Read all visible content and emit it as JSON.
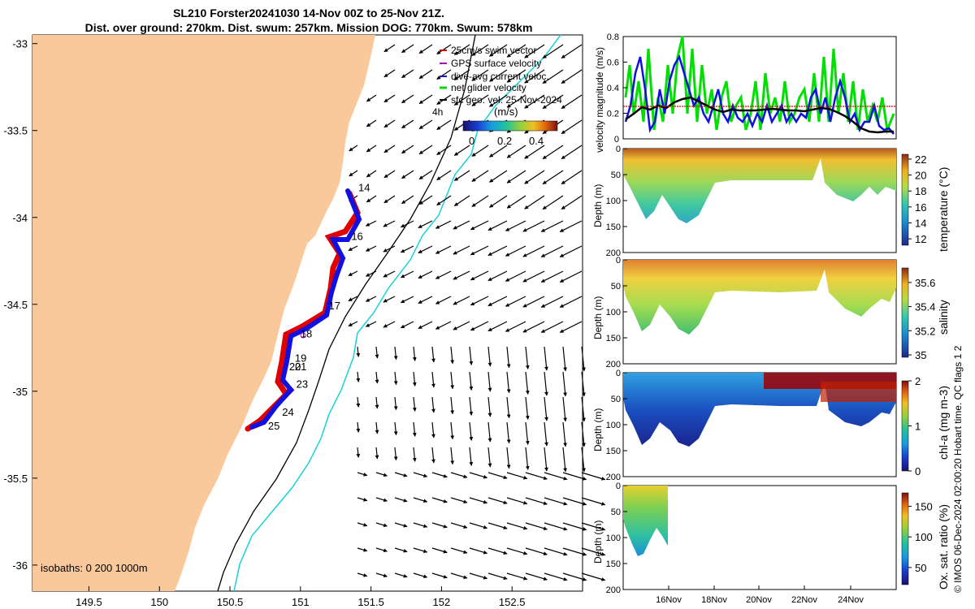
{
  "header": {
    "title_line1": "SL210 Forster20241030 14-Nov 00Z to 25-Nov 21Z.",
    "title_line2": "Dist. over ground: 270km. Dist. swum: 257km. Mission DOG: 770km. Swum: 578km"
  },
  "map": {
    "colors": {
      "land": "#f9c99b",
      "shelf_1000m": "#19d2d8",
      "shelf_200m": "#000000",
      "swim_vector": "#e00000",
      "dive_current": "#1010e0",
      "gps_velocity": "#c000c0",
      "net_velocity": "#00e000"
    },
    "x_ticks": [
      "149.5",
      "150",
      "150.5",
      "151",
      "151.5",
      "152",
      "152.5"
    ],
    "y_ticks": [
      "-33",
      "-33.5",
      "-34",
      "-34.5",
      "-35",
      "-35.5",
      "-36"
    ],
    "legend": [
      {
        "key": "swim",
        "label": "25cm/s swim vector"
      },
      {
        "key": "gps",
        "label": "GPS surface velocity"
      },
      {
        "key": "dive",
        "label": "dive-avg current veloc."
      },
      {
        "key": "net",
        "label": "net glider velocity"
      },
      {
        "key": "sfc",
        "label": "sfc geo. vel. 25-Nov-2024"
      }
    ],
    "legend_note": "4h",
    "colorbar": {
      "unit": "(m/s)",
      "ticks": [
        "0",
        "0.2",
        "0.4"
      ]
    },
    "isobaths": "isobaths: 0   200  1000m",
    "day_labels": [
      {
        "label": "14",
        "lon": 151.41,
        "lat": -33.85
      },
      {
        "label": "16",
        "lon": 151.36,
        "lat": -34.13
      },
      {
        "label": "17",
        "lon": 151.2,
        "lat": -34.53
      },
      {
        "label": "18",
        "lon": 151.0,
        "lat": -34.69
      },
      {
        "label": "19",
        "lon": 150.96,
        "lat": -34.83
      },
      {
        "label": "20",
        "lon": 150.92,
        "lat": -34.88
      },
      {
        "label": "21",
        "lon": 150.96,
        "lat": -34.88
      },
      {
        "label": "23",
        "lon": 150.97,
        "lat": -34.98
      },
      {
        "label": "24",
        "lon": 150.87,
        "lat": -35.14
      },
      {
        "label": "25",
        "lon": 150.77,
        "lat": -35.22
      }
    ]
  },
  "panels": {
    "velocity": {
      "ylabel": "velocity magnitude (m/s)",
      "y_ticks": [
        "0",
        "0.2",
        "0.4",
        "0.6",
        "0.8"
      ]
    },
    "temperature": {
      "ylabel": "Depth (m)",
      "cbar_label": "temperature (°C)",
      "cbar_ticks": [
        "12",
        "14",
        "16",
        "18",
        "20",
        "22"
      ],
      "depth_ticks": [
        "0",
        "50",
        "100",
        "150",
        "200"
      ]
    },
    "salinity": {
      "ylabel": "Depth (m)",
      "cbar_label": "salinity",
      "cbar_ticks": [
        "35",
        "35.2",
        "35.4",
        "35.6"
      ],
      "depth_ticks": [
        "0",
        "50",
        "100",
        "150",
        "200"
      ]
    },
    "chla": {
      "ylabel": "Depth (m)",
      "cbar_label": "chl-a (mg m-3)",
      "cbar_ticks": [
        "0",
        "1",
        "2"
      ],
      "depth_ticks": [
        "0",
        "50",
        "100",
        "150",
        "200"
      ]
    },
    "oxygen": {
      "ylabel": "Depth (m)",
      "cbar_label": "Ox. sat. ratio (%)",
      "cbar_ticks": [
        "50",
        "100",
        "150"
      ],
      "depth_ticks": [
        "0",
        "50",
        "100",
        "150",
        "200"
      ]
    },
    "time_ticks": [
      "16Nov",
      "18Nov",
      "20Nov",
      "22Nov",
      "24Nov"
    ]
  },
  "copyright": "© IMOS 06-Dec-2024 02:00:20 Hobart time. QC flags 1  2"
}
